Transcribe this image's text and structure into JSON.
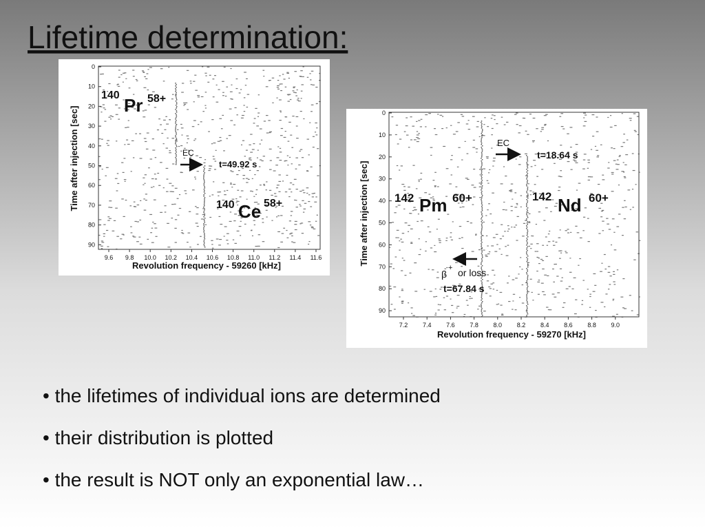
{
  "title": "Lifetime determination:",
  "figures": [
    {
      "ylabel": "Time after injection [sec]",
      "xlabel": "Revolution frequency - 59260 [kHz]",
      "yticks": [
        "0",
        "10",
        "20",
        "30",
        "40",
        "50",
        "60",
        "70",
        "80",
        "90"
      ],
      "xticks": [
        "9.6",
        "9.8",
        "10.0",
        "10.2",
        "10.4",
        "10.6",
        "10.8",
        "11.0",
        "11.2",
        "11.4",
        "11.6"
      ],
      "annotations": [
        "140",
        "Pr",
        "58+",
        "EC",
        "t=49.92 s",
        "140",
        "Ce",
        "58+"
      ]
    },
    {
      "ylabel": "Time after injection [sec]",
      "xlabel": "Revolution frequency - 59270 [kHz]",
      "yticks": [
        "0",
        "10",
        "20",
        "30",
        "40",
        "50",
        "60",
        "70",
        "80",
        "90"
      ],
      "xticks": [
        "7.2",
        "7.4",
        "7.6",
        "7.8",
        "8.0",
        "8.2",
        "8.4",
        "8.6",
        "8.8",
        "9.0"
      ],
      "annotations": [
        "EC",
        "t=18.64 s",
        "142",
        "Pm",
        "60+",
        "142",
        "Nd",
        "60+",
        "β",
        "+",
        "or loss",
        "t=67.84 s"
      ]
    }
  ],
  "bullets": [
    "• the lifetimes of individual ions are determined",
    "• their distribution is plotted",
    "• the result is NOT only an exponential law…"
  ]
}
